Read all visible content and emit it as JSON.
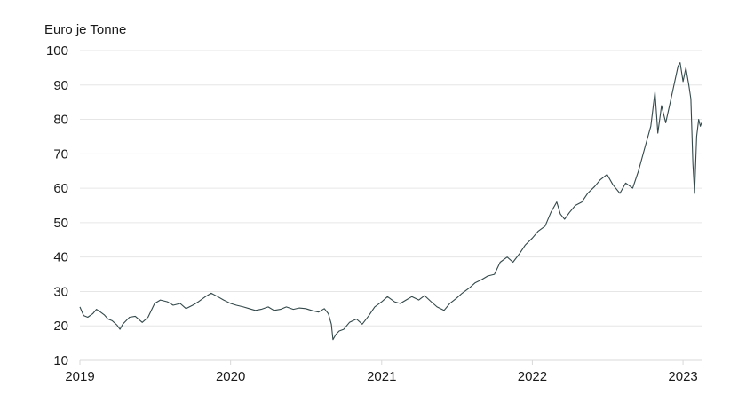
{
  "chart_data": {
    "type": "line",
    "title": "",
    "ylabel": "Euro je Tonne",
    "xlabel": "",
    "ylim": [
      10,
      100
    ],
    "yticks": [
      10,
      20,
      30,
      40,
      50,
      60,
      70,
      80,
      90,
      100
    ],
    "xlim": [
      "2019-01-01",
      "2023-02-15"
    ],
    "xticks": [
      {
        "date": "2019-01-01",
        "label": "2019"
      },
      {
        "date": "2020-01-01",
        "label": "2020"
      },
      {
        "date": "2021-01-01",
        "label": "2021"
      },
      {
        "date": "2022-01-01",
        "label": "2022"
      },
      {
        "date": "2023-01-01",
        "label": "2023"
      }
    ],
    "grid": true,
    "legend": "none",
    "series": [
      {
        "color": "#33484a",
        "points": [
          [
            "2019-01-01",
            25.5
          ],
          [
            "2019-01-10",
            23.0
          ],
          [
            "2019-01-20",
            22.5
          ],
          [
            "2019-02-01",
            23.5
          ],
          [
            "2019-02-10",
            24.8
          ],
          [
            "2019-02-20",
            24.0
          ],
          [
            "2019-03-01",
            23.2
          ],
          [
            "2019-03-10",
            22.0
          ],
          [
            "2019-03-20",
            21.5
          ],
          [
            "2019-04-01",
            20.2
          ],
          [
            "2019-04-08",
            19.0
          ],
          [
            "2019-04-15",
            20.5
          ],
          [
            "2019-05-01",
            22.5
          ],
          [
            "2019-05-15",
            22.8
          ],
          [
            "2019-06-01",
            21.0
          ],
          [
            "2019-06-15",
            22.5
          ],
          [
            "2019-07-01",
            26.5
          ],
          [
            "2019-07-15",
            27.5
          ],
          [
            "2019-08-01",
            27.0
          ],
          [
            "2019-08-15",
            26.0
          ],
          [
            "2019-09-01",
            26.5
          ],
          [
            "2019-09-15",
            25.0
          ],
          [
            "2019-10-01",
            26.0
          ],
          [
            "2019-10-15",
            27.0
          ],
          [
            "2019-11-01",
            28.5
          ],
          [
            "2019-11-15",
            29.5
          ],
          [
            "2019-12-01",
            28.5
          ],
          [
            "2019-12-15",
            27.5
          ],
          [
            "2020-01-01",
            26.5
          ],
          [
            "2020-01-15",
            26.0
          ],
          [
            "2020-02-01",
            25.5
          ],
          [
            "2020-02-15",
            25.0
          ],
          [
            "2020-03-01",
            24.5
          ],
          [
            "2020-03-15",
            24.8
          ],
          [
            "2020-04-01",
            25.5
          ],
          [
            "2020-04-15",
            24.5
          ],
          [
            "2020-05-01",
            24.8
          ],
          [
            "2020-05-15",
            25.5
          ],
          [
            "2020-06-01",
            24.8
          ],
          [
            "2020-06-15",
            25.2
          ],
          [
            "2020-07-01",
            25.0
          ],
          [
            "2020-07-15",
            24.5
          ],
          [
            "2020-08-01",
            24.0
          ],
          [
            "2020-08-15",
            25.0
          ],
          [
            "2020-08-25",
            23.5
          ],
          [
            "2020-09-01",
            20.5
          ],
          [
            "2020-09-05",
            16.0
          ],
          [
            "2020-09-12",
            17.5
          ],
          [
            "2020-09-20",
            18.5
          ],
          [
            "2020-10-01",
            19.0
          ],
          [
            "2020-10-15",
            21.0
          ],
          [
            "2020-11-01",
            22.0
          ],
          [
            "2020-11-15",
            20.5
          ],
          [
            "2020-12-01",
            23.0
          ],
          [
            "2020-12-15",
            25.5
          ],
          [
            "2021-01-01",
            27.0
          ],
          [
            "2021-01-15",
            28.5
          ],
          [
            "2021-02-01",
            27.0
          ],
          [
            "2021-02-15",
            26.5
          ],
          [
            "2021-03-01",
            27.5
          ],
          [
            "2021-03-15",
            28.5
          ],
          [
            "2021-04-01",
            27.5
          ],
          [
            "2021-04-15",
            28.8
          ],
          [
            "2021-05-01",
            27.0
          ],
          [
            "2021-05-15",
            25.5
          ],
          [
            "2021-06-01",
            24.5
          ],
          [
            "2021-06-15",
            26.5
          ],
          [
            "2021-07-01",
            28.0
          ],
          [
            "2021-07-15",
            29.5
          ],
          [
            "2021-08-01",
            31.0
          ],
          [
            "2021-08-15",
            32.5
          ],
          [
            "2021-09-01",
            33.5
          ],
          [
            "2021-09-15",
            34.5
          ],
          [
            "2021-10-01",
            35.0
          ],
          [
            "2021-10-15",
            38.5
          ],
          [
            "2021-11-01",
            40.0
          ],
          [
            "2021-11-15",
            38.5
          ],
          [
            "2021-12-01",
            41.0
          ],
          [
            "2021-12-15",
            43.5
          ],
          [
            "2022-01-01",
            45.5
          ],
          [
            "2022-01-15",
            47.5
          ],
          [
            "2022-02-01",
            49.0
          ],
          [
            "2022-02-15",
            53.0
          ],
          [
            "2022-03-01",
            56.0
          ],
          [
            "2022-03-10",
            52.5
          ],
          [
            "2022-03-20",
            51.0
          ],
          [
            "2022-04-01",
            53.0
          ],
          [
            "2022-04-15",
            55.0
          ],
          [
            "2022-05-01",
            56.0
          ],
          [
            "2022-05-15",
            58.5
          ],
          [
            "2022-06-01",
            60.5
          ],
          [
            "2022-06-15",
            62.5
          ],
          [
            "2022-07-01",
            64.0
          ],
          [
            "2022-07-15",
            61.0
          ],
          [
            "2022-08-01",
            58.5
          ],
          [
            "2022-08-15",
            61.5
          ],
          [
            "2022-09-01",
            60.0
          ],
          [
            "2022-09-15",
            65.0
          ],
          [
            "2022-10-01",
            72.0
          ],
          [
            "2022-10-15",
            78.0
          ],
          [
            "2022-10-25",
            88.0
          ],
          [
            "2022-11-01",
            76.0
          ],
          [
            "2022-11-10",
            84.0
          ],
          [
            "2022-11-20",
            79.0
          ],
          [
            "2022-12-01",
            85.0
          ],
          [
            "2022-12-10",
            90.0
          ],
          [
            "2022-12-20",
            95.5
          ],
          [
            "2022-12-25",
            96.5
          ],
          [
            "2023-01-01",
            91.0
          ],
          [
            "2023-01-08",
            95.0
          ],
          [
            "2023-01-15",
            90.0
          ],
          [
            "2023-01-20",
            86.0
          ],
          [
            "2023-01-25",
            67.0
          ],
          [
            "2023-01-29",
            58.5
          ],
          [
            "2023-02-03",
            75.0
          ],
          [
            "2023-02-08",
            80.0
          ],
          [
            "2023-02-12",
            78.0
          ],
          [
            "2023-02-15",
            79.0
          ]
        ]
      }
    ]
  }
}
